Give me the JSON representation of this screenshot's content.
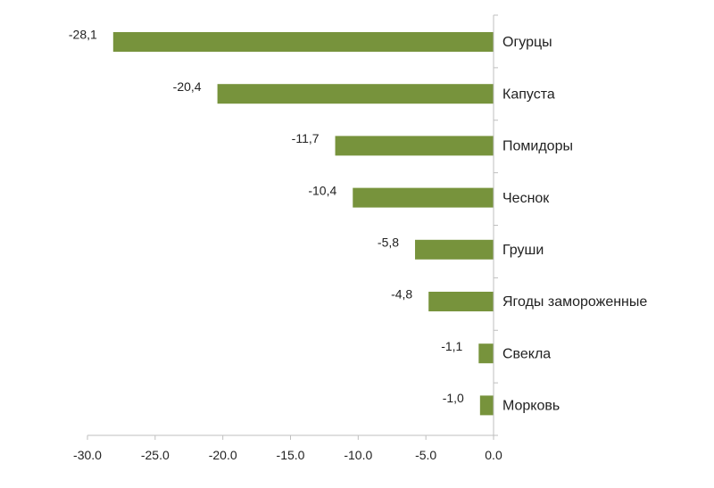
{
  "chart_data": {
    "type": "bar",
    "orientation": "horizontal",
    "categories": [
      "Огурцы",
      "Капуста",
      "Помидоры",
      "Чеснок",
      "Груши",
      "Ягоды замороженные",
      "Свекла",
      "Морковь"
    ],
    "values": [
      -28.1,
      -20.4,
      -11.7,
      -10.4,
      -5.8,
      -4.8,
      -1.1,
      -1.0
    ],
    "value_labels": [
      "-28,1",
      "-20,4",
      "-11,7",
      "-10,4",
      "-5,8",
      "-4,8",
      "-1,1",
      "-1,0"
    ],
    "x_ticks": [
      -30,
      -25,
      -20,
      -15,
      -10,
      -5,
      0
    ],
    "x_tick_labels": [
      "-30.0",
      "-25.0",
      "-20.0",
      "-15.0",
      "-10.0",
      "-5.0",
      "0.0"
    ],
    "xlim": [
      -30,
      0
    ],
    "grid": false,
    "colors": {
      "bar": "#77933c",
      "axis": "#bfbfbf",
      "text": "#222222"
    }
  }
}
